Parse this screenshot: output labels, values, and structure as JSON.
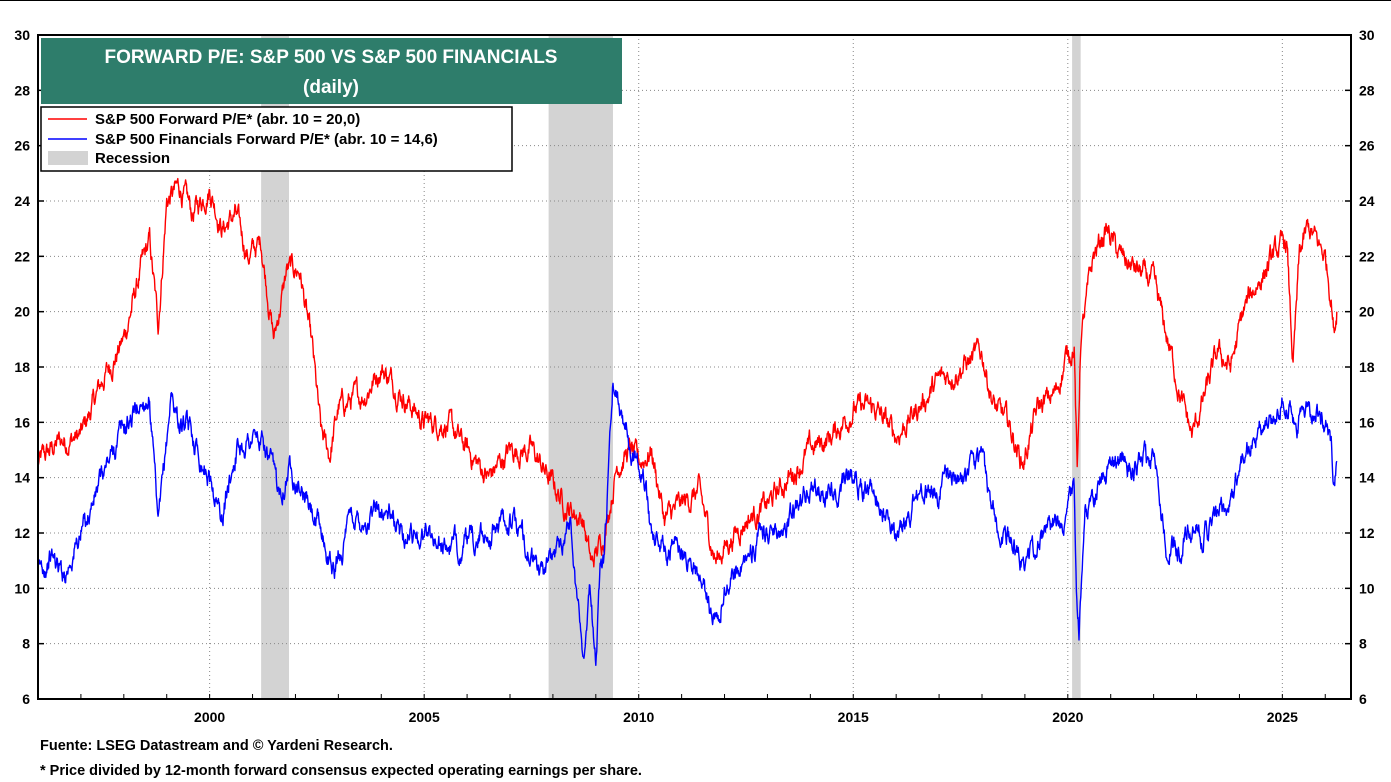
{
  "chart_data": {
    "type": "line",
    "title": "FORWARD P/E: S&P 500 VS S&P 500 FINANCIALS",
    "subtitle": "(daily)",
    "xlabel": "",
    "ylabel": "",
    "xlim": [
      1996.0,
      2026.6
    ],
    "ylim": [
      6,
      30
    ],
    "x_ticks": [
      2000,
      2005,
      2010,
      2015,
      2020,
      2025
    ],
    "y_ticks": [
      6,
      8,
      10,
      12,
      14,
      16,
      18,
      20,
      22,
      24,
      26,
      28,
      30
    ],
    "grid": true,
    "legend_position": "top-left",
    "recessions": [
      {
        "label": "Recession",
        "start": 2001.2,
        "end": 2001.85
      },
      {
        "start": 2007.9,
        "end": 2009.4
      },
      {
        "start": 2020.1,
        "end": 2020.3
      }
    ],
    "series": [
      {
        "name": "S&P 500 Forward P/E* (abr. 10 = 20,0)",
        "color": "#ff0000",
        "x": [
          1996.0,
          1996.5,
          1997.0,
          1997.5,
          1998.0,
          1998.4,
          1998.6,
          1998.8,
          1999.0,
          1999.3,
          1999.6,
          2000.0,
          2000.3,
          2000.6,
          2000.9,
          2001.2,
          2001.5,
          2001.8,
          2002.1,
          2002.4,
          2002.6,
          2002.8,
          2003.0,
          2003.3,
          2003.6,
          2004.0,
          2004.5,
          2005.0,
          2005.5,
          2006.0,
          2006.5,
          2007.0,
          2007.5,
          2007.9,
          2008.3,
          2008.7,
          2008.9,
          2009.2,
          2009.5,
          2009.8,
          2010.0,
          2010.3,
          2010.6,
          2011.0,
          2011.4,
          2011.8,
          2012.0,
          2012.5,
          2013.0,
          2013.5,
          2014.0,
          2014.5,
          2015.0,
          2015.5,
          2016.0,
          2016.5,
          2017.0,
          2017.5,
          2018.0,
          2018.3,
          2018.6,
          2018.95,
          2019.3,
          2019.7,
          2020.0,
          2020.15,
          2020.22,
          2020.3,
          2020.6,
          2020.9,
          2021.2,
          2021.6,
          2022.0,
          2022.4,
          2022.7,
          2022.9,
          2023.2,
          2023.5,
          2023.8,
          2024.1,
          2024.4,
          2024.8,
          2025.1,
          2025.25,
          2025.4,
          2025.6,
          2025.8,
          2026.0,
          2026.15,
          2026.2,
          2026.27
        ],
        "values": [
          14.5,
          15.3,
          15.5,
          17.5,
          19.0,
          21.5,
          22.5,
          19.5,
          24.0,
          24.5,
          23.5,
          24.5,
          23.0,
          23.5,
          22.0,
          22.5,
          19.0,
          21.5,
          21.5,
          18.5,
          15.5,
          14.8,
          16.5,
          16.8,
          17.0,
          18.0,
          17.0,
          16.0,
          16.0,
          15.0,
          14.0,
          15.0,
          15.0,
          14.0,
          13.0,
          12.5,
          10.8,
          12.0,
          14.5,
          15.0,
          14.5,
          15.0,
          12.5,
          13.0,
          13.5,
          11.0,
          11.5,
          12.5,
          13.0,
          14.0,
          15.0,
          15.5,
          16.5,
          16.5,
          15.5,
          16.5,
          17.5,
          18.0,
          18.5,
          16.5,
          16.0,
          14.5,
          16.5,
          17.0,
          18.5,
          18.8,
          14.0,
          19.0,
          22.0,
          23.0,
          22.0,
          21.5,
          21.0,
          18.5,
          16.5,
          15.5,
          17.0,
          18.5,
          18.0,
          20.0,
          21.0,
          22.0,
          22.5,
          18.0,
          22.0,
          23.0,
          22.5,
          22.0,
          20.5,
          19.3,
          20.0
        ]
      },
      {
        "name": "S&P 500 Financials Forward P/E* (abr. 10 = 14,6)",
        "color": "#0000ff",
        "x": [
          1996.0,
          1996.3,
          1996.6,
          1997.0,
          1997.5,
          1997.9,
          1998.3,
          1998.6,
          1998.8,
          1999.1,
          1999.3,
          1999.6,
          2000.0,
          2000.3,
          2000.6,
          2001.0,
          2001.3,
          2001.6,
          2001.9,
          2002.3,
          2002.6,
          2002.9,
          2003.3,
          2003.7,
          2004.0,
          2004.5,
          2005.0,
          2005.5,
          2006.0,
          2006.5,
          2007.0,
          2007.4,
          2007.7,
          2008.0,
          2008.4,
          2008.7,
          2008.85,
          2009.0,
          2009.1,
          2009.2,
          2009.4,
          2009.6,
          2009.9,
          2010.1,
          2010.3,
          2010.6,
          2010.9,
          2011.3,
          2011.7,
          2011.9,
          2012.3,
          2012.7,
          2013.0,
          2013.5,
          2014.0,
          2014.5,
          2015.0,
          2015.5,
          2016.0,
          2016.2,
          2016.6,
          2017.0,
          2017.5,
          2018.0,
          2018.3,
          2018.6,
          2018.95,
          2019.3,
          2019.7,
          2020.0,
          2020.15,
          2020.2,
          2020.26,
          2020.4,
          2020.8,
          2021.2,
          2021.6,
          2022.0,
          2022.3,
          2022.6,
          2022.9,
          2023.2,
          2023.5,
          2023.8,
          2024.1,
          2024.4,
          2024.8,
          2025.0,
          2025.2,
          2025.3,
          2025.5,
          2025.8,
          2026.0,
          2026.15,
          2026.2,
          2026.27
        ],
        "values": [
          10.5,
          11.2,
          10.5,
          12.0,
          14.0,
          15.5,
          16.5,
          17.0,
          12.0,
          17.0,
          16.0,
          15.5,
          14.0,
          12.5,
          15.0,
          15.5,
          15.0,
          13.5,
          14.5,
          13.0,
          12.0,
          10.5,
          12.5,
          12.5,
          13.0,
          12.0,
          12.0,
          11.5,
          11.5,
          12.0,
          12.5,
          11.5,
          10.5,
          11.0,
          12.5,
          7.5,
          10.0,
          7.5,
          10.5,
          11.0,
          17.5,
          16.5,
          15.0,
          14.5,
          12.0,
          11.5,
          11.5,
          11.0,
          9.0,
          9.5,
          11.0,
          11.5,
          12.0,
          12.5,
          13.5,
          13.5,
          14.0,
          13.5,
          12.0,
          12.5,
          13.5,
          13.5,
          14.0,
          14.5,
          12.5,
          12.0,
          11.0,
          11.5,
          12.5,
          13.0,
          13.5,
          9.5,
          8.2,
          12.5,
          14.0,
          14.5,
          14.5,
          14.5,
          11.5,
          11.5,
          12.0,
          12.0,
          12.5,
          13.0,
          15.0,
          15.5,
          16.0,
          17.0,
          16.5,
          15.5,
          16.5,
          16.5,
          16.0,
          15.0,
          14.0,
          14.6
        ]
      }
    ]
  },
  "footer": {
    "source": "Fuente: LSEG Datastream and © Yardeni Research.",
    "note": "* Price divided by 12-month forward consensus expected operating earnings per share."
  }
}
